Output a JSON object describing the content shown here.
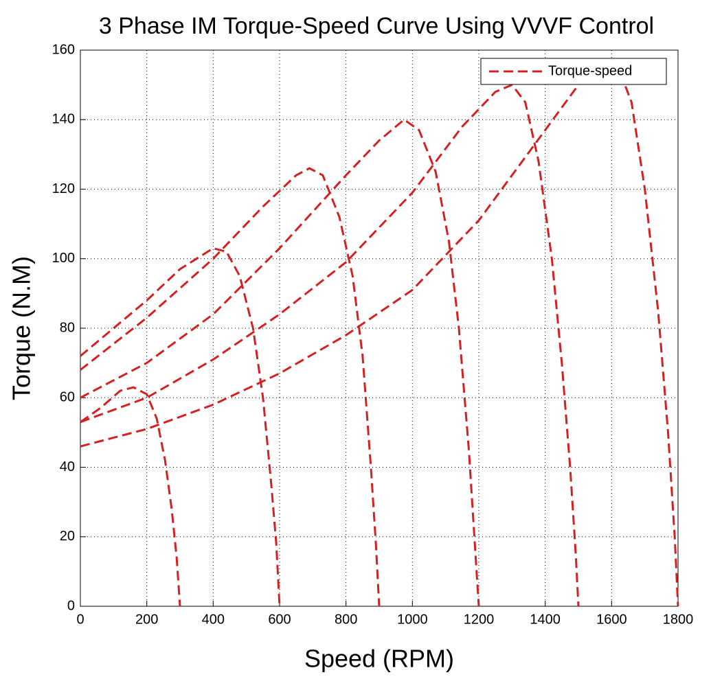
{
  "chart_data": {
    "type": "line",
    "title": "3 Phase IM Torque-Speed Curve Using VVVF   Control",
    "x_label": "Speed (RPM)",
    "y_label": "Torque (N.M)",
    "xlim": [
      0,
      1800
    ],
    "ylim": [
      0,
      160
    ],
    "xticks": [
      0,
      200,
      400,
      600,
      800,
      1000,
      1200,
      1400,
      1600,
      1800
    ],
    "yticks": [
      0,
      20,
      40,
      60,
      80,
      100,
      120,
      140,
      160
    ],
    "grid": true,
    "legend": "upper right",
    "series": [
      {
        "name": "Torque-speed",
        "color": "#d42020",
        "x": [
          0,
          60,
          120,
          160,
          200,
          230,
          255,
          275,
          290,
          300,
          null,
          0,
          100,
          200,
          300,
          400,
          440,
          480,
          520,
          550,
          575,
          590,
          600,
          null,
          0,
          200,
          400,
          550,
          650,
          690,
          730,
          780,
          820,
          850,
          875,
          890,
          900,
          null,
          0,
          200,
          400,
          600,
          800,
          900,
          975,
          1020,
          1070,
          1110,
          1140,
          1170,
          1190,
          1200,
          null,
          0,
          200,
          400,
          600,
          800,
          1000,
          1150,
          1250,
          1300,
          1340,
          1380,
          1420,
          1450,
          1475,
          1492,
          1500,
          null,
          0,
          200,
          400,
          600,
          800,
          1000,
          1200,
          1400,
          1500,
          1560,
          1620,
          1660,
          1700,
          1740,
          1770,
          1790,
          1800
        ],
        "values": [
          53,
          57,
          62,
          63,
          61,
          54,
          42,
          28,
          14,
          0,
          null,
          72,
          80,
          88,
          97,
          103,
          102,
          95,
          80,
          60,
          35,
          18,
          0,
          null,
          68,
          83,
          100,
          115,
          124,
          126,
          124,
          112,
          95,
          72,
          40,
          18,
          0,
          null,
          60,
          70,
          84,
          103,
          124,
          134,
          140,
          137,
          125,
          105,
          80,
          45,
          15,
          0,
          null,
          53,
          60,
          71,
          84,
          99,
          119,
          138,
          148,
          150,
          145,
          128,
          100,
          70,
          40,
          15,
          0,
          null,
          46,
          51,
          58,
          67,
          78,
          91,
          111,
          137,
          150,
          157,
          155,
          145,
          120,
          85,
          50,
          20,
          0
        ]
      }
    ]
  }
}
